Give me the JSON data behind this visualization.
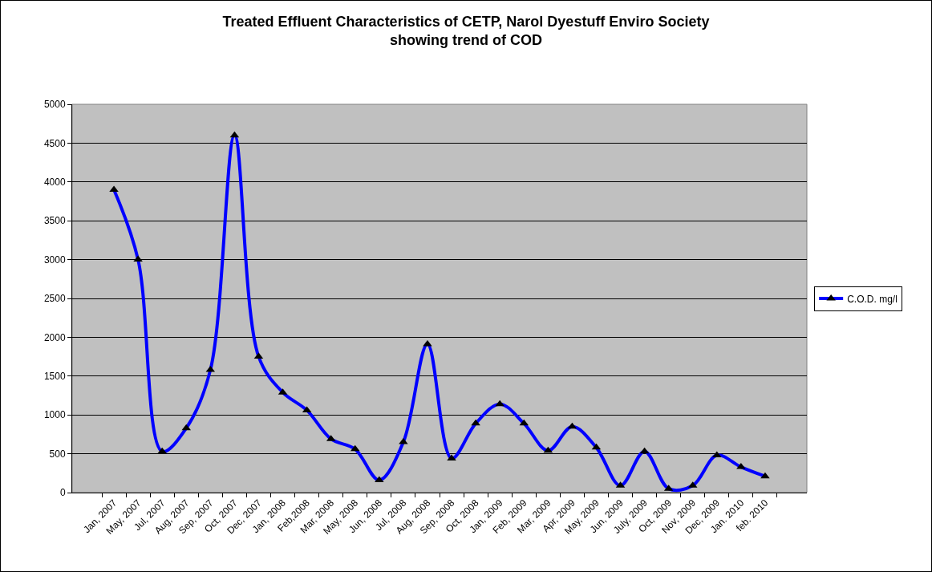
{
  "chart_data": {
    "type": "line",
    "title": "Treated Effluent Characteristics of CETP, Narol Dyestuff Enviro Society\nshowing trend of COD",
    "categories": [
      "Jan, 2007",
      "May, 2007",
      "Jul, 2007",
      "Aug, 2007",
      "Sep, 2007",
      "Oct, 2007",
      "Dec, 2007",
      "Jan, 2008",
      "Feb,2008",
      "Mar, 2008",
      "May, 2008",
      "Jun, 2008",
      "Jul, 2008",
      "Aug, 2008",
      "Sep, 2008",
      "Oct, 2008",
      "Jan, 2009",
      "Feb, 2009",
      "Mar, 2009",
      "Apr, 2009",
      "May, 2009",
      "Jun, 2009",
      "July, 2009",
      "Oct, 2009",
      "Nov, 2009",
      "Dec, 2009",
      "Jan. 2010",
      "feb. 2010"
    ],
    "series": [
      {
        "name": "C.O.D. mg/l",
        "color": "#0000ff",
        "values": [
          3900,
          3000,
          530,
          830,
          1580,
          4600,
          1750,
          1290,
          1060,
          690,
          560,
          160,
          650,
          1910,
          440,
          890,
          1140,
          890,
          540,
          850,
          580,
          90,
          530,
          50,
          90,
          480,
          330,
          210
        ]
      }
    ],
    "ylim": [
      0,
      5000
    ],
    "yticks": [
      0,
      500,
      1000,
      1500,
      2000,
      2500,
      3000,
      3500,
      4000,
      4500,
      5000
    ],
    "grid": "y",
    "legend": "right",
    "marker": "triangle",
    "line_style": "solid"
  }
}
